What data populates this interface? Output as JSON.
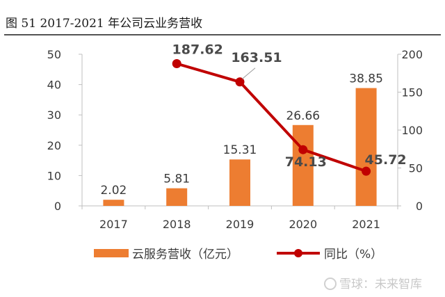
{
  "title": "图 51 2017-2021 年公司云业务营收",
  "watermark": "雪球：未来智库",
  "colors": {
    "bar": "#ED7D31",
    "line": "#C00000",
    "title_rule": "#1a1a1a",
    "axis": "#bfbfbf"
  },
  "chart_data": {
    "type": "bar",
    "categories": [
      "2017",
      "2018",
      "2019",
      "2020",
      "2021"
    ],
    "series": [
      {
        "name": "云服务营收（亿元）",
        "type": "bar",
        "axis": "left",
        "values": [
          2.02,
          5.81,
          15.31,
          26.66,
          38.85
        ],
        "labels": [
          "2.02",
          "5.81",
          "15.31",
          "26.66",
          "38.85"
        ]
      },
      {
        "name": "同比（%）",
        "type": "line",
        "axis": "right",
        "values": [
          null,
          187.62,
          163.51,
          74.13,
          45.72
        ],
        "labels": [
          "",
          "187.62",
          "163.51",
          "74.13",
          "45.72"
        ]
      }
    ],
    "y_left": {
      "range": [
        0,
        50
      ],
      "ticks": [
        "0",
        "10",
        "20",
        "30",
        "40",
        "50"
      ]
    },
    "y_right": {
      "range": [
        0,
        200
      ],
      "ticks": [
        "0",
        "50",
        "100",
        "150",
        "200"
      ]
    },
    "grid": false,
    "legend": "bottom"
  }
}
